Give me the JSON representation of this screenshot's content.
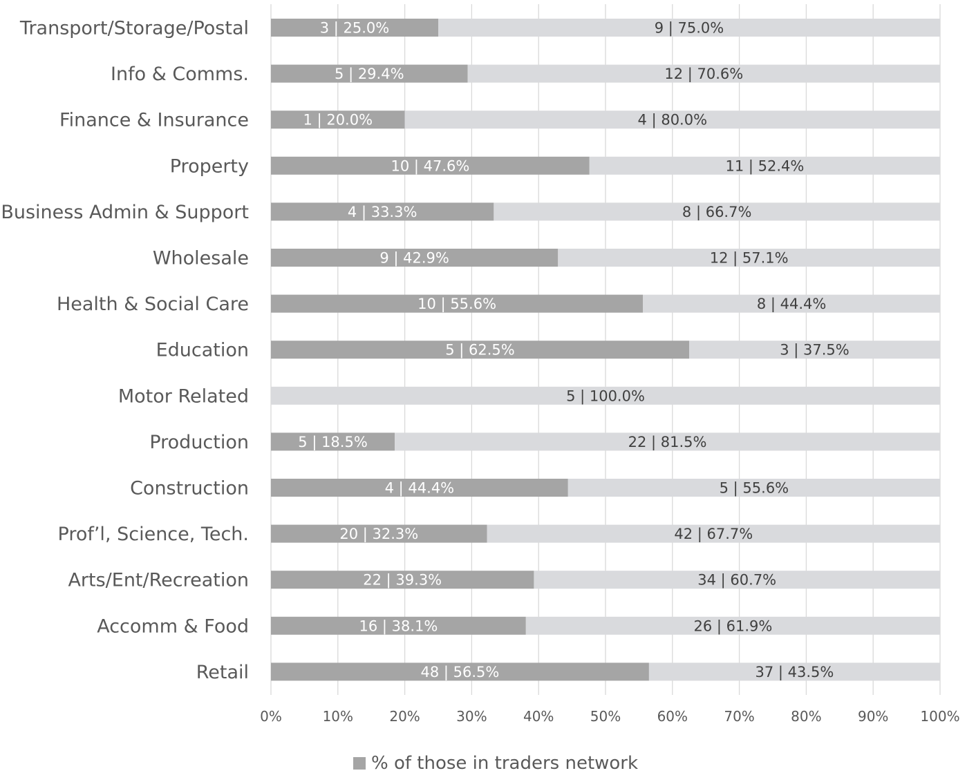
{
  "chart_data": {
    "type": "bar",
    "orientation": "horizontal",
    "stacked": "percent",
    "categories": [
      "Transport/Storage/Postal",
      "Info & Comms.",
      "Finance & Insurance",
      "Property",
      "Business Admin & Support",
      "Wholesale",
      "Health & Social Care",
      "Education",
      "Motor Related",
      "Production",
      "Construction",
      "Prof’l, Science, Tech.",
      "Arts/Ent/Recreation",
      "Accomm & Food",
      "Retail"
    ],
    "series": [
      {
        "name": "% of those in traders network",
        "color": "#a5a5a5",
        "label_color": "#ffffff",
        "counts": [
          3,
          5,
          1,
          10,
          4,
          9,
          10,
          5,
          0,
          5,
          4,
          20,
          22,
          16,
          48
        ],
        "values": [
          25.0,
          29.4,
          20.0,
          47.6,
          33.3,
          42.9,
          55.6,
          62.5,
          0.0,
          18.5,
          44.4,
          32.3,
          39.3,
          38.1,
          56.5
        ],
        "labels": [
          "3 | 25.0%",
          "5 | 29.4%",
          "1 | 20.0%",
          "10 | 47.6%",
          "4 | 33.3%",
          "9 | 42.9%",
          "10 | 55.6%",
          "5 | 62.5%",
          "",
          "5 | 18.5%",
          "4 | 44.4%",
          "20 | 32.3%",
          "22 | 39.3%",
          "16 | 38.1%",
          "48 | 56.5%"
        ]
      },
      {
        "color": "#d9dadd",
        "label_color": "#404040",
        "counts": [
          9,
          12,
          4,
          11,
          8,
          12,
          8,
          3,
          5,
          22,
          5,
          42,
          34,
          26,
          37
        ],
        "values": [
          75.0,
          70.6,
          80.0,
          52.4,
          66.7,
          57.1,
          44.4,
          37.5,
          100.0,
          81.5,
          55.6,
          67.7,
          60.7,
          61.9,
          43.5
        ],
        "labels": [
          "9 | 75.0%",
          "12 | 70.6%",
          "4 | 80.0%",
          "11 | 52.4%",
          "8 | 66.7%",
          "12 | 57.1%",
          "8 | 44.4%",
          "3 | 37.5%",
          "5 | 100.0%",
          "22 | 81.5%",
          "5 | 55.6%",
          "42 | 67.7%",
          "34 | 60.7%",
          "26 | 61.9%",
          "37 | 43.5%"
        ]
      }
    ],
    "x_ticks": [
      "0%",
      "10%",
      "20%",
      "30%",
      "40%",
      "50%",
      "60%",
      "70%",
      "80%",
      "90%",
      "100%"
    ],
    "xlim": [
      0,
      100
    ],
    "grid": "vertical",
    "gridline_color": "#d9d9d9",
    "legend": {
      "position": "bottom",
      "entries": [
        {
          "label": "% of those in traders network",
          "color": "#a5a5a5"
        }
      ]
    }
  }
}
